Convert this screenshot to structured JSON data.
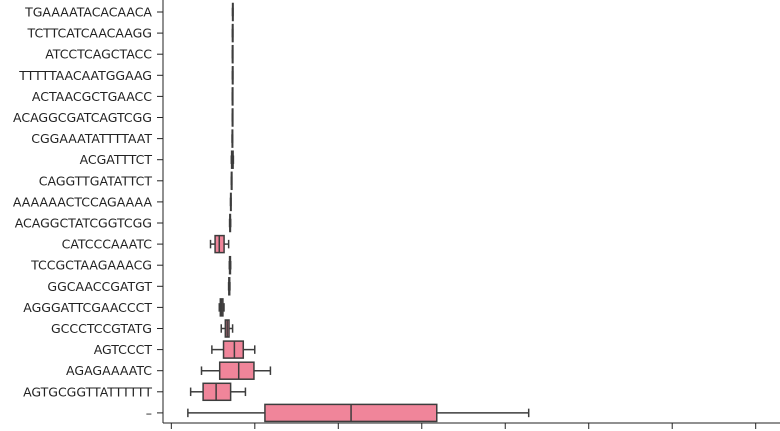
{
  "chart_data": {
    "type": "box",
    "orientation": "horizontal",
    "title": "",
    "xlabel": "",
    "ylabel": "",
    "xlim": [
      0,
      1
    ],
    "grid": false,
    "legend": "none",
    "box_color": "#f0859a",
    "line_color": "#3d3d3d",
    "categories": [
      "TGAAAATACACAACA",
      "TCTTCATCAACAAGG",
      "ATCCTCAGCTACC",
      "TTTTTAACAATGGAAG",
      "ACTAACGCTGAACC",
      "ACAGGCGATCAGTCGG",
      "CGGAAATATTTTAAT",
      "ACGATTTCT",
      "CAGGTTGATATTCT",
      "AAAAAACTCCAGAAAA",
      "ACAGGCTATCGGTCGG",
      "CATCCCAAATC",
      "TCCGCTAAGAAACG",
      "GGCAACCGATGT",
      "AGGGATTCGAACCCT",
      "GCCCTCCGTATG",
      "AGTCCCT",
      "AGAGAAAATC",
      "AGTGCGGTTATTTTTT",
      "–"
    ],
    "boxes": [
      {
        "whislo": 0.1126,
        "q1": 0.1128,
        "med": 0.113,
        "q3": 0.1132,
        "whishi": 0.1134
      },
      {
        "whislo": 0.1124,
        "q1": 0.1126,
        "med": 0.1128,
        "q3": 0.113,
        "whishi": 0.1132
      },
      {
        "whislo": 0.1123,
        "q1": 0.1125,
        "med": 0.1127,
        "q3": 0.1129,
        "whishi": 0.1131
      },
      {
        "whislo": 0.1124,
        "q1": 0.1126,
        "med": 0.1128,
        "q3": 0.113,
        "whishi": 0.1132
      },
      {
        "whislo": 0.1122,
        "q1": 0.1124,
        "med": 0.1126,
        "q3": 0.1128,
        "whishi": 0.113
      },
      {
        "whislo": 0.1122,
        "q1": 0.1124,
        "med": 0.1126,
        "q3": 0.1128,
        "whishi": 0.113
      },
      {
        "whislo": 0.1119,
        "q1": 0.1121,
        "med": 0.1123,
        "q3": 0.1125,
        "whishi": 0.1127
      },
      {
        "whislo": 0.1107,
        "q1": 0.1112,
        "med": 0.1124,
        "q3": 0.1136,
        "whishi": 0.1141
      },
      {
        "whislo": 0.1107,
        "q1": 0.1109,
        "med": 0.1111,
        "q3": 0.1113,
        "whishi": 0.1115
      },
      {
        "whislo": 0.1094,
        "q1": 0.1096,
        "med": 0.1098,
        "q3": 0.11,
        "whishi": 0.1102
      },
      {
        "whislo": 0.1079,
        "q1": 0.1083,
        "med": 0.1088,
        "q3": 0.1093,
        "whishi": 0.1097
      },
      {
        "whislo": 0.077,
        "q1": 0.0844,
        "med": 0.0912,
        "q3": 0.099,
        "whishi": 0.1064
      },
      {
        "whislo": 0.1075,
        "q1": 0.1079,
        "med": 0.1086,
        "q3": 0.1093,
        "whishi": 0.1097
      },
      {
        "whislo": 0.1063,
        "q1": 0.1067,
        "med": 0.1074,
        "q3": 0.1081,
        "whishi": 0.1085
      },
      {
        "whislo": 0.0912,
        "q1": 0.0929,
        "med": 0.095,
        "q3": 0.0971,
        "whishi": 0.0989
      },
      {
        "whislo": 0.0944,
        "q1": 0.101,
        "med": 0.104,
        "q3": 0.107,
        "whishi": 0.1128
      },
      {
        "whislo": 0.0792,
        "q1": 0.0981,
        "med": 0.1157,
        "q3": 0.1301,
        "whishi": 0.1487
      },
      {
        "whislo": 0.0624,
        "q1": 0.0919,
        "med": 0.1227,
        "q3": 0.1474,
        "whishi": 0.1741
      },
      {
        "whislo": 0.0448,
        "q1": 0.065,
        "med": 0.0861,
        "q3": 0.1096,
        "whishi": 0.1336
      },
      {
        "whislo": 0.0403,
        "q1": 0.1652,
        "med": 0.3048,
        "q3": 0.4437,
        "whishi": 0.5927
      }
    ]
  }
}
